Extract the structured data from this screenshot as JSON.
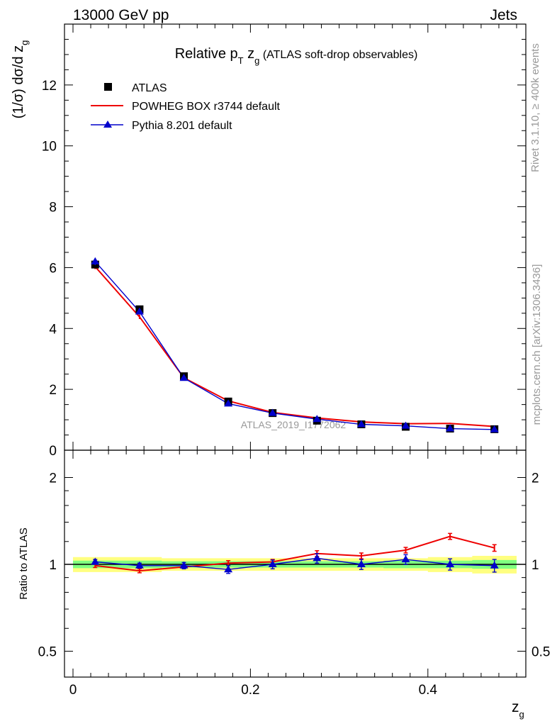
{
  "header": {
    "left": "13000 GeV pp",
    "right": "Jets"
  },
  "side_labels": {
    "rivet": "Rivet 3.1.10, ≥ 400k events",
    "mcplots": "mcplots.cern.ch [arXiv:1306.3436]"
  },
  "chart_data": [
    {
      "type": "scatter",
      "title_parts": {
        "prefix": "Relative p",
        "sub_T": "T",
        "mid": " z",
        "sub_g": "g",
        "suffix": " (ATLAS soft-drop observables)"
      },
      "ylabel": "(1/σ) dσ/d z",
      "ylabel_sub": "g",
      "watermark": "ATLAS_2019_I1772062",
      "xlim": [
        0,
        0.5
      ],
      "ylim": [
        0,
        14
      ],
      "yticks": [
        "0",
        "2",
        "4",
        "6",
        "8",
        "10",
        "12"
      ],
      "x": [
        0.025,
        0.075,
        0.125,
        0.175,
        0.225,
        0.275,
        0.325,
        0.375,
        0.425,
        0.475
      ],
      "legend_position": "top-left",
      "series": [
        {
          "name": "ATLAS",
          "color": "#000000",
          "marker": "square",
          "values": [
            6.1,
            4.63,
            2.43,
            1.6,
            1.22,
            0.97,
            0.85,
            0.77,
            0.71,
            0.69
          ],
          "err": [
            0.05,
            0.06,
            0.03,
            0.02,
            0.02,
            0.02,
            0.02,
            0.02,
            0.02,
            0.02
          ]
        },
        {
          "name": "POWHEG BOX r3744 default",
          "color": "#ee0000",
          "marker": "line",
          "values": [
            6.03,
            4.38,
            2.38,
            1.62,
            1.24,
            1.06,
            0.93,
            0.87,
            0.88,
            0.78
          ],
          "err": [
            0.08,
            0.07,
            0.04,
            0.03,
            0.03,
            0.02,
            0.02,
            0.02,
            0.02,
            0.02
          ]
        },
        {
          "name": "Pythia 8.201 default",
          "color": "#0000cc",
          "marker": "triangle",
          "values": [
            6.2,
            4.55,
            2.37,
            1.53,
            1.22,
            1.02,
            0.85,
            0.8,
            0.71,
            0.68
          ],
          "err": [
            0.12,
            0.08,
            0.05,
            0.04,
            0.03,
            0.03,
            0.03,
            0.03,
            0.03,
            0.03
          ]
        }
      ]
    },
    {
      "type": "line",
      "ylabel": "Ratio to ATLAS",
      "xlabel": "z",
      "xlabel_sub": "g",
      "xlim": [
        0,
        0.5
      ],
      "ylim": [
        0.43,
        2.3
      ],
      "yscale": "log",
      "yticks": [
        "0.5",
        "1",
        "2"
      ],
      "xticks": [
        "0",
        "0.2",
        "0.4"
      ],
      "x": [
        0.025,
        0.075,
        0.125,
        0.175,
        0.225,
        0.275,
        0.325,
        0.375,
        0.425,
        0.475
      ],
      "band": {
        "yellow_half": [
          0.06,
          0.06,
          0.05,
          0.05,
          0.05,
          0.05,
          0.05,
          0.05,
          0.06,
          0.07
        ],
        "green_half": [
          0.03,
          0.03,
          0.025,
          0.025,
          0.025,
          0.025,
          0.025,
          0.03,
          0.03,
          0.035
        ],
        "yellow": "#ffff80",
        "green": "#80ff80"
      },
      "series": [
        {
          "name": "POWHEG BOX r3744 default",
          "color": "#ee0000",
          "values": [
            0.99,
            0.95,
            0.98,
            1.01,
            1.02,
            1.09,
            1.07,
            1.12,
            1.25,
            1.14
          ],
          "err": [
            0.015,
            0.015,
            0.015,
            0.02,
            0.02,
            0.025,
            0.025,
            0.025,
            0.03,
            0.03
          ]
        },
        {
          "name": "Pythia 8.201 default",
          "color": "#0000cc",
          "values": [
            1.02,
            0.99,
            0.99,
            0.96,
            1.0,
            1.05,
            1.0,
            1.04,
            1.0,
            0.99
          ],
          "err": [
            0.02,
            0.02,
            0.025,
            0.03,
            0.035,
            0.04,
            0.04,
            0.04,
            0.045,
            0.05
          ]
        }
      ]
    }
  ]
}
